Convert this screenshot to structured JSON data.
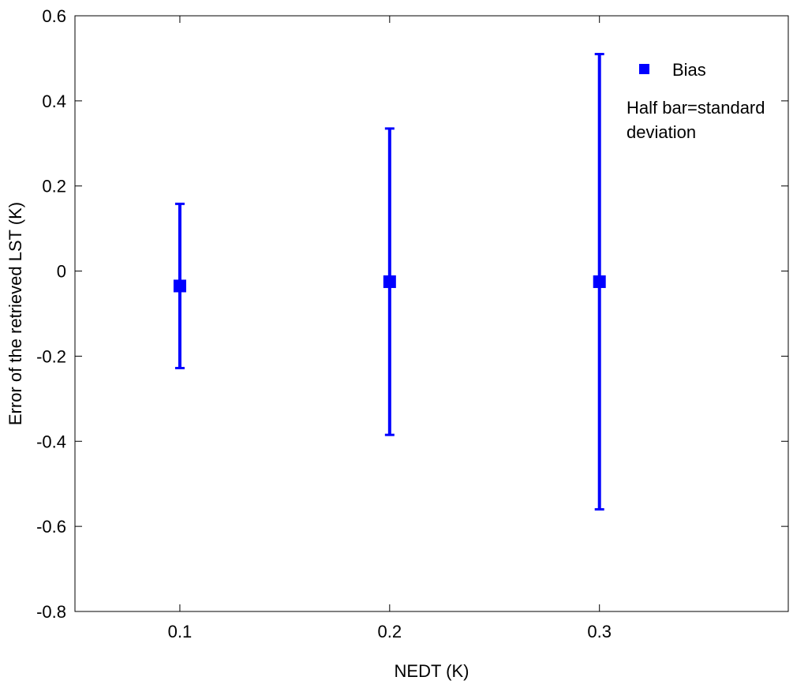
{
  "chart_data": {
    "type": "scatter",
    "title": "",
    "xlabel": "NEDT (K)",
    "ylabel": "Error of the retrieved LST (K)",
    "xlim": [
      0.05,
      0.39
    ],
    "ylim": [
      -0.8,
      0.6
    ],
    "xticks": [
      "0.1",
      "0.2",
      "0.3"
    ],
    "xtick_values": [
      0.1,
      0.2,
      0.3
    ],
    "yticks": [
      "0.6",
      "0.4",
      "0.2",
      "0",
      "-0.2",
      "-0.4",
      "-0.6",
      "-0.8"
    ],
    "ytick_values": [
      0.6,
      0.4,
      0.2,
      0,
      -0.2,
      -0.4,
      -0.6,
      -0.8
    ],
    "grid": false,
    "legend_position": "top-right",
    "color": "#0000ff",
    "series": [
      {
        "name": "Bias",
        "x": [
          0.1,
          0.2,
          0.3
        ],
        "y": [
          -0.035,
          -0.025,
          -0.025
        ],
        "std": [
          0.193,
          0.36,
          0.535
        ]
      }
    ],
    "annotations": [
      "Half bar=standard",
      "deviation"
    ]
  }
}
